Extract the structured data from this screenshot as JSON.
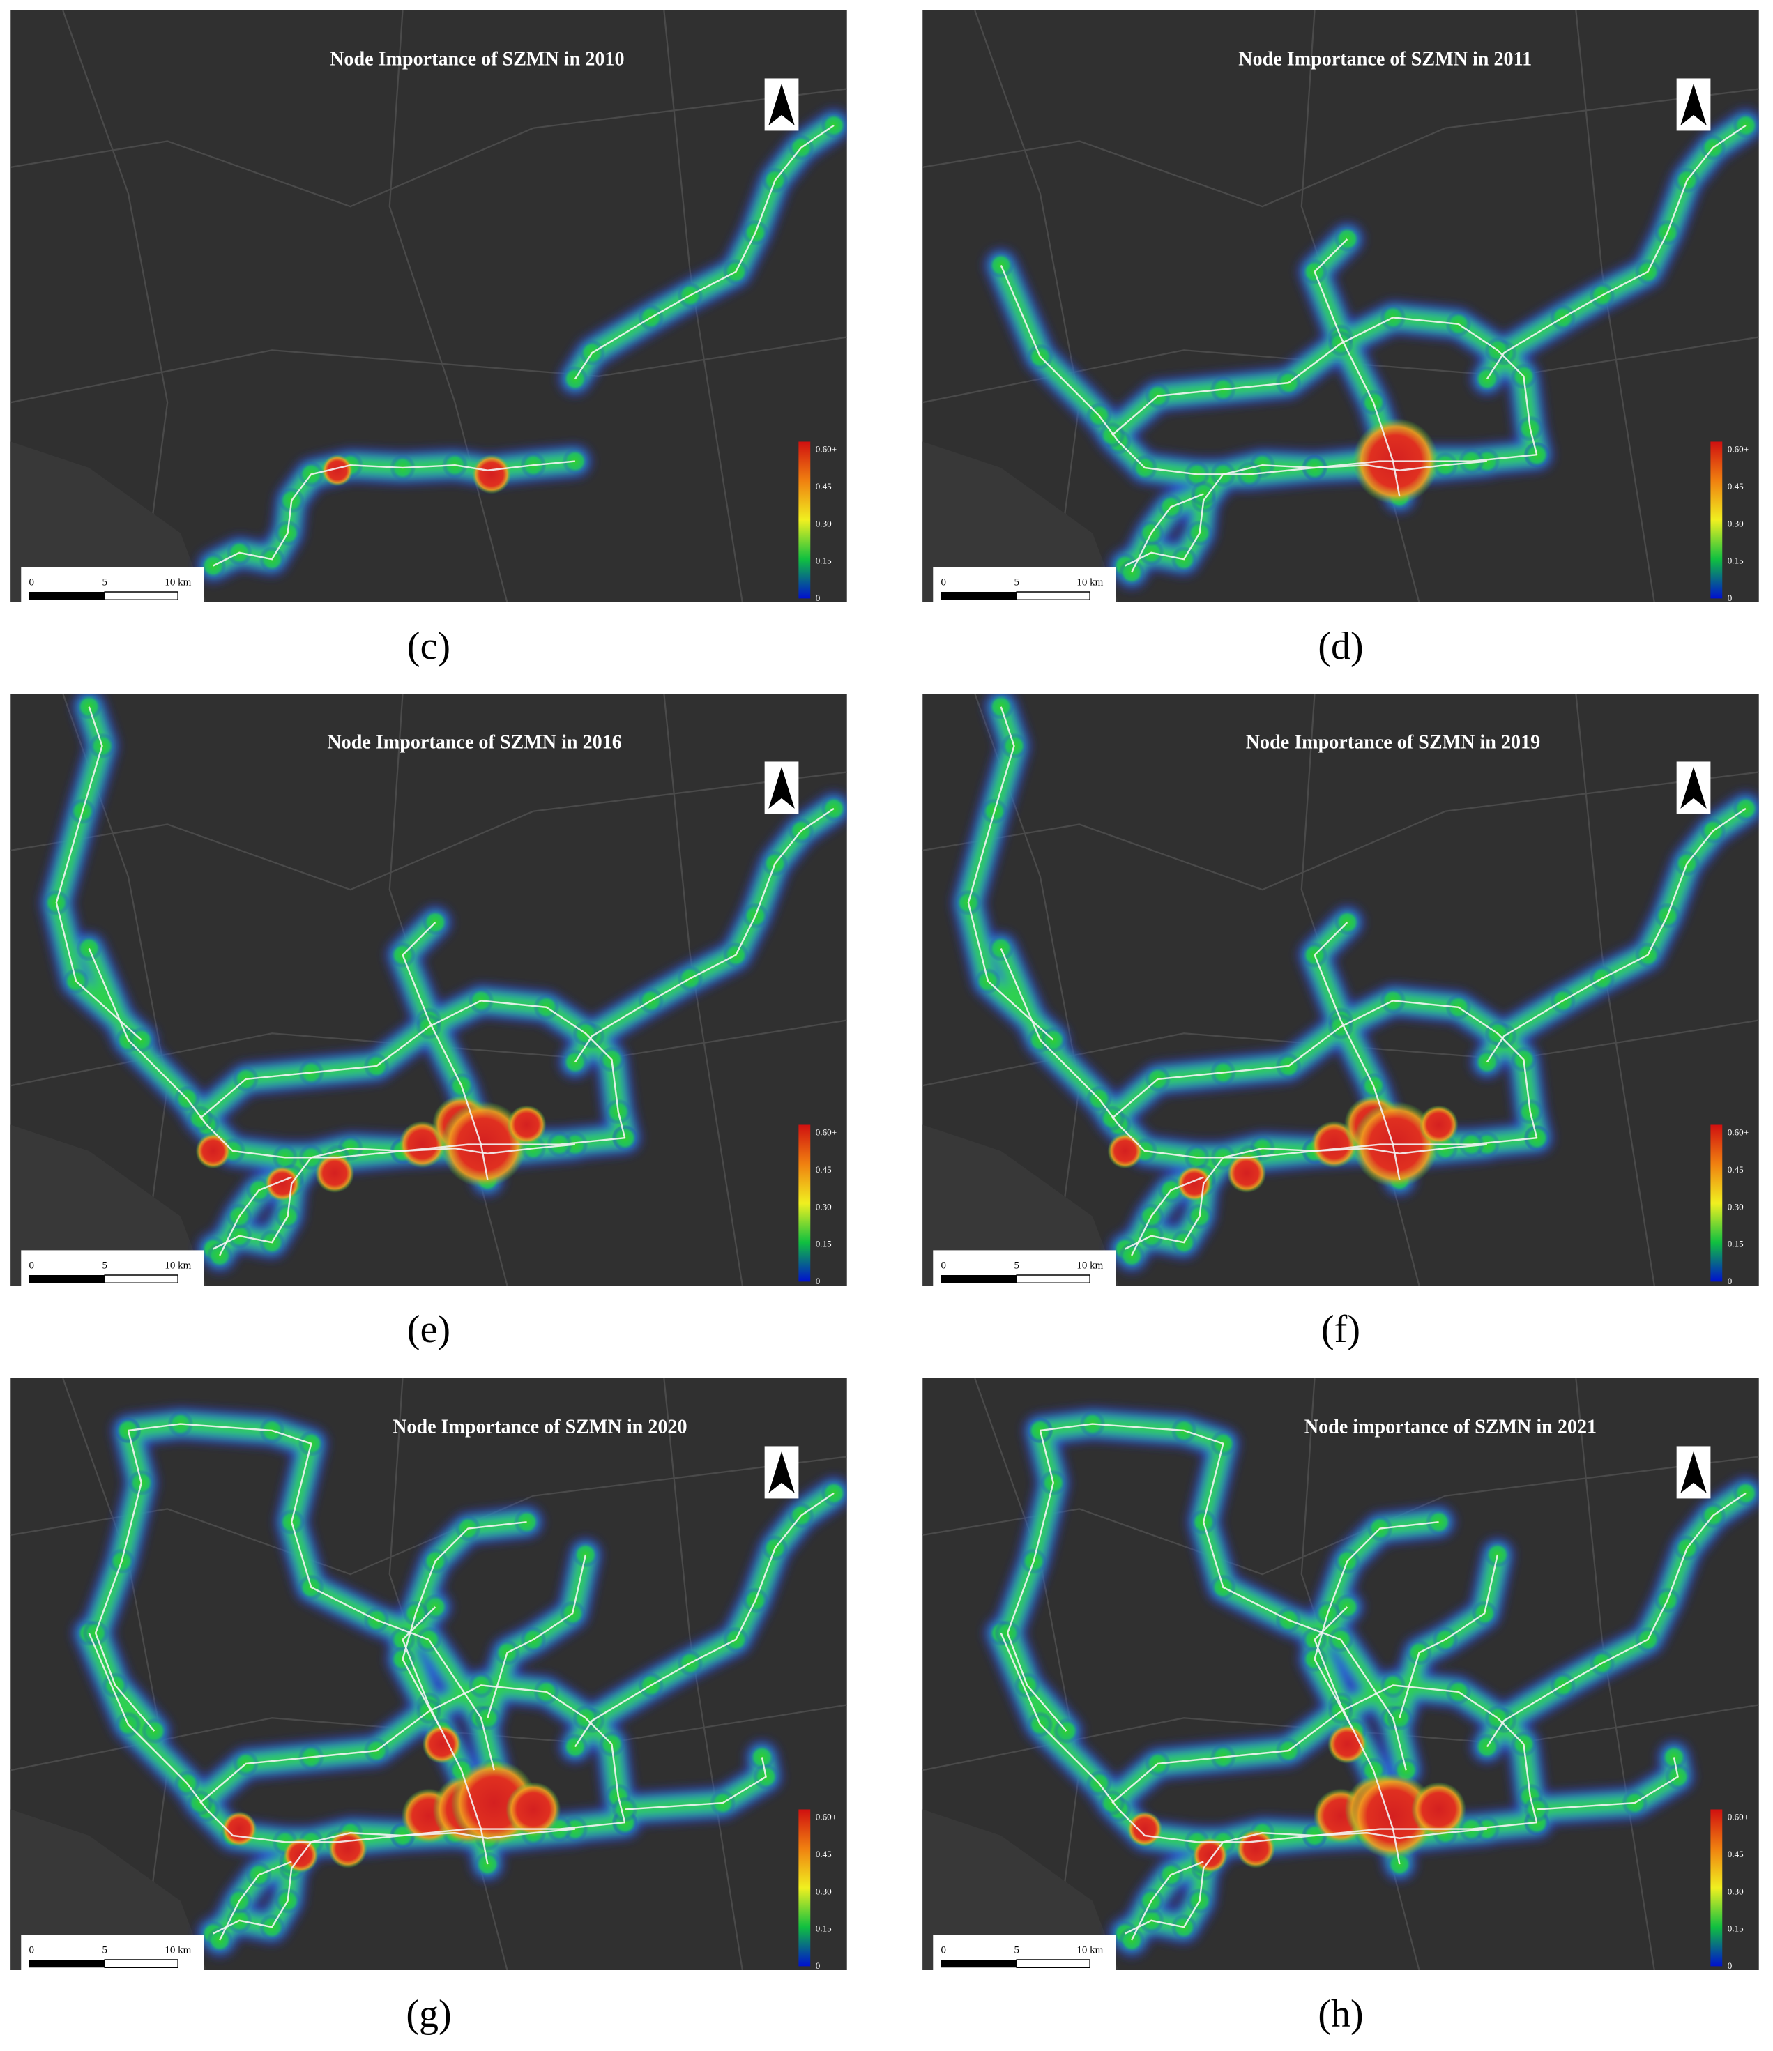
{
  "panels": [
    {
      "title": "Node Importance of SZMN in 2010",
      "caption": "(c)"
    },
    {
      "title": "Node Importance of SZMN in 2011",
      "caption": "(d)"
    },
    {
      "title": "Node Importance of SZMN in 2016",
      "caption": "(e)"
    },
    {
      "title": "Node Importance of SZMN in 2019",
      "caption": "(f)"
    },
    {
      "title": "Node Importance of SZMN in 2020",
      "caption": "(g)"
    },
    {
      "title": "Node importance of SZMN in 2021",
      "caption": "(h)"
    }
  ],
  "legend": {
    "labels": [
      "0.60+",
      "0.45",
      "0.30",
      "0.15",
      "0"
    ]
  },
  "scale_bar": {
    "labels": [
      "0",
      "5",
      "10 km"
    ]
  }
}
